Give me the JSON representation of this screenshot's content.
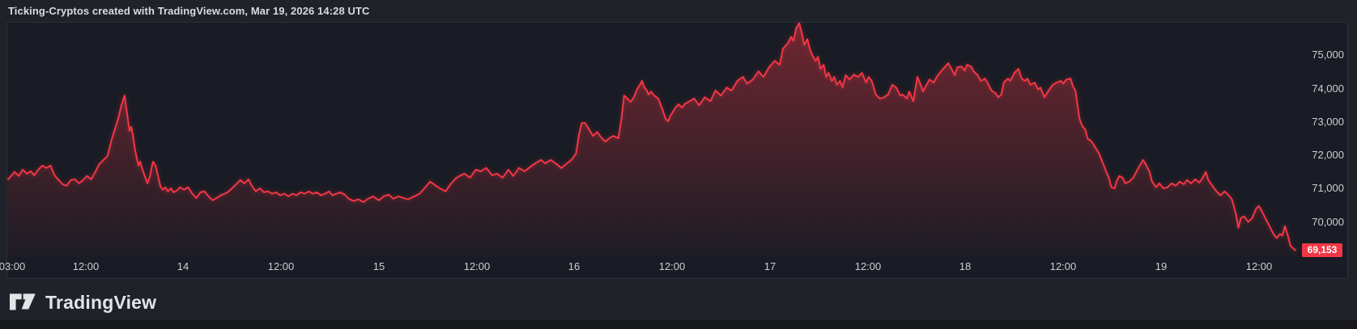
{
  "header": {
    "title": "Ticking-Cryptos created with TradingView.com, Mar 19, 2026 14:28 UTC"
  },
  "footer": {
    "brand": "TradingView",
    "logo_icon": "tradingview-logo"
  },
  "colors": {
    "line": "#f23645",
    "fill_top": "rgba(242,54,69,0.40)",
    "fill_bottom": "rgba(242,54,69,0.02)",
    "badge_bg": "#f23645",
    "badge_text": "#ffffff",
    "outer_bg": "#20222a",
    "plot_bg": "#191c24",
    "frame_border": "#2e3138",
    "axis_text": "#cdced3",
    "title_text": "#d9dadd"
  },
  "chart_data": {
    "type": "line",
    "title": "Ticking-Cryptos created with TradingView.com, Mar 19, 2026 14:28 UTC",
    "series_name": "Ticking-Cryptos",
    "time_unit": "hours since Mar 13 2026 00:00 UTC",
    "x_range": [
      2.3,
      160.8
    ],
    "y_range": [
      68950,
      76000
    ],
    "grid": false,
    "legend": "none",
    "last_price": 69153,
    "last_price_label": "69,153",
    "x_ticks": [
      {
        "t": 3,
        "label": "03:00"
      },
      {
        "t": 12,
        "label": "12:00"
      },
      {
        "t": 24,
        "label": "14"
      },
      {
        "t": 36,
        "label": "12:00"
      },
      {
        "t": 48,
        "label": "15"
      },
      {
        "t": 60,
        "label": "12:00"
      },
      {
        "t": 72,
        "label": "16"
      },
      {
        "t": 84,
        "label": "12:00"
      },
      {
        "t": 96,
        "label": "17"
      },
      {
        "t": 108,
        "label": "12:00"
      },
      {
        "t": 120,
        "label": "18"
      },
      {
        "t": 132,
        "label": "12:00"
      },
      {
        "t": 144,
        "label": "19"
      },
      {
        "t": 156,
        "label": "12:00"
      }
    ],
    "y_ticks": [
      {
        "price": 70000,
        "label": "70,000"
      },
      {
        "price": 71000,
        "label": "71,000"
      },
      {
        "price": 72000,
        "label": "72,000"
      },
      {
        "price": 73000,
        "label": "73,000"
      },
      {
        "price": 74000,
        "label": "74,000"
      },
      {
        "price": 75000,
        "label": "75,000"
      }
    ],
    "series": [
      [
        2.5,
        71280
      ],
      [
        3.3,
        71500
      ],
      [
        3.8,
        71380
      ],
      [
        4.3,
        71570
      ],
      [
        4.8,
        71450
      ],
      [
        5.3,
        71520
      ],
      [
        5.7,
        71400
      ],
      [
        6.2,
        71570
      ],
      [
        6.7,
        71690
      ],
      [
        7.2,
        71620
      ],
      [
        7.7,
        71690
      ],
      [
        8.2,
        71400
      ],
      [
        8.7,
        71260
      ],
      [
        9.2,
        71130
      ],
      [
        9.7,
        71090
      ],
      [
        10.2,
        71260
      ],
      [
        10.7,
        71280
      ],
      [
        11.2,
        71160
      ],
      [
        11.7,
        71260
      ],
      [
        12.2,
        71380
      ],
      [
        12.7,
        71280
      ],
      [
        13.2,
        71500
      ],
      [
        13.7,
        71740
      ],
      [
        14.2,
        71860
      ],
      [
        14.7,
        71980
      ],
      [
        15.2,
        72460
      ],
      [
        15.6,
        72780
      ],
      [
        16.0,
        73090
      ],
      [
        16.4,
        73500
      ],
      [
        16.8,
        73790
      ],
      [
        17.1,
        73260
      ],
      [
        17.4,
        72730
      ],
      [
        17.6,
        72850
      ],
      [
        17.8,
        72630
      ],
      [
        18.1,
        72130
      ],
      [
        18.5,
        71690
      ],
      [
        18.7,
        71810
      ],
      [
        19.0,
        71570
      ],
      [
        19.6,
        71160
      ],
      [
        19.9,
        71350
      ],
      [
        20.1,
        71620
      ],
      [
        20.3,
        71810
      ],
      [
        20.6,
        71690
      ],
      [
        20.9,
        71380
      ],
      [
        21.2,
        71060
      ],
      [
        21.5,
        70970
      ],
      [
        21.8,
        71040
      ],
      [
        22.1,
        70920
      ],
      [
        22.5,
        71010
      ],
      [
        22.8,
        70890
      ],
      [
        23.2,
        70940
      ],
      [
        23.6,
        71040
      ],
      [
        24.1,
        70970
      ],
      [
        24.6,
        71040
      ],
      [
        25.1,
        70850
      ],
      [
        25.6,
        70720
      ],
      [
        26.1,
        70890
      ],
      [
        26.6,
        70920
      ],
      [
        27.1,
        70770
      ],
      [
        27.6,
        70650
      ],
      [
        28.1,
        70720
      ],
      [
        28.6,
        70800
      ],
      [
        29.1,
        70850
      ],
      [
        29.6,
        70920
      ],
      [
        30.1,
        71040
      ],
      [
        30.6,
        71160
      ],
      [
        31.0,
        71260
      ],
      [
        31.5,
        71160
      ],
      [
        32.0,
        71280
      ],
      [
        32.4,
        71090
      ],
      [
        32.9,
        70920
      ],
      [
        33.4,
        71010
      ],
      [
        33.9,
        70890
      ],
      [
        34.4,
        70920
      ],
      [
        34.9,
        70850
      ],
      [
        35.4,
        70890
      ],
      [
        35.9,
        70800
      ],
      [
        36.4,
        70850
      ],
      [
        36.9,
        70770
      ],
      [
        37.4,
        70850
      ],
      [
        37.9,
        70800
      ],
      [
        38.4,
        70890
      ],
      [
        38.9,
        70850
      ],
      [
        39.4,
        70920
      ],
      [
        39.9,
        70850
      ],
      [
        40.4,
        70890
      ],
      [
        40.9,
        70800
      ],
      [
        41.4,
        70850
      ],
      [
        41.9,
        70920
      ],
      [
        42.3,
        70800
      ],
      [
        42.8,
        70850
      ],
      [
        43.3,
        70890
      ],
      [
        43.8,
        70820
      ],
      [
        44.3,
        70700
      ],
      [
        44.9,
        70630
      ],
      [
        45.5,
        70680
      ],
      [
        46.1,
        70600
      ],
      [
        46.7,
        70700
      ],
      [
        47.3,
        70770
      ],
      [
        48.0,
        70650
      ],
      [
        48.6,
        70770
      ],
      [
        49.2,
        70820
      ],
      [
        49.8,
        70700
      ],
      [
        50.4,
        70770
      ],
      [
        51.0,
        70720
      ],
      [
        51.6,
        70680
      ],
      [
        52.2,
        70750
      ],
      [
        53.0,
        70850
      ],
      [
        53.6,
        71010
      ],
      [
        54.3,
        71210
      ],
      [
        55.0,
        71090
      ],
      [
        55.5,
        71010
      ],
      [
        56.2,
        70920
      ],
      [
        56.8,
        71130
      ],
      [
        57.4,
        71300
      ],
      [
        57.9,
        71380
      ],
      [
        58.5,
        71450
      ],
      [
        59.2,
        71330
      ],
      [
        59.9,
        71570
      ],
      [
        60.5,
        71520
      ],
      [
        61.2,
        71620
      ],
      [
        61.9,
        71400
      ],
      [
        62.5,
        71450
      ],
      [
        63.2,
        71330
      ],
      [
        63.9,
        71570
      ],
      [
        64.5,
        71380
      ],
      [
        65.2,
        71620
      ],
      [
        65.9,
        71520
      ],
      [
        66.5,
        71640
      ],
      [
        67.2,
        71760
      ],
      [
        67.9,
        71860
      ],
      [
        68.4,
        71760
      ],
      [
        69.1,
        71860
      ],
      [
        69.8,
        71740
      ],
      [
        70.4,
        71620
      ],
      [
        71.1,
        71760
      ],
      [
        71.7,
        71880
      ],
      [
        72.2,
        72050
      ],
      [
        72.6,
        72660
      ],
      [
        72.9,
        72970
      ],
      [
        73.3,
        72970
      ],
      [
        73.8,
        72780
      ],
      [
        74.3,
        72580
      ],
      [
        74.8,
        72700
      ],
      [
        75.3,
        72530
      ],
      [
        75.8,
        72410
      ],
      [
        76.4,
        72530
      ],
      [
        76.8,
        72580
      ],
      [
        77.4,
        72510
      ],
      [
        77.8,
        73140
      ],
      [
        78.1,
        73790
      ],
      [
        78.5,
        73700
      ],
      [
        78.9,
        73600
      ],
      [
        79.3,
        73740
      ],
      [
        79.7,
        73980
      ],
      [
        80.1,
        74130
      ],
      [
        80.3,
        74230
      ],
      [
        80.6,
        74030
      ],
      [
        80.9,
        73940
      ],
      [
        81.1,
        73820
      ],
      [
        81.4,
        73910
      ],
      [
        81.8,
        73790
      ],
      [
        82.3,
        73700
      ],
      [
        82.8,
        73380
      ],
      [
        83.2,
        73090
      ],
      [
        83.5,
        73020
      ],
      [
        83.8,
        73190
      ],
      [
        84.1,
        73310
      ],
      [
        84.4,
        73430
      ],
      [
        84.8,
        73530
      ],
      [
        85.2,
        73430
      ],
      [
        85.6,
        73550
      ],
      [
        86.0,
        73600
      ],
      [
        86.7,
        73700
      ],
      [
        87.3,
        73500
      ],
      [
        88.0,
        73740
      ],
      [
        88.7,
        73620
      ],
      [
        89.3,
        73940
      ],
      [
        90.0,
        73790
      ],
      [
        90.7,
        74030
      ],
      [
        91.3,
        73940
      ],
      [
        92.0,
        74230
      ],
      [
        92.7,
        74350
      ],
      [
        93.2,
        74150
      ],
      [
        93.9,
        74270
      ],
      [
        94.6,
        74520
      ],
      [
        95.2,
        74350
      ],
      [
        95.9,
        74640
      ],
      [
        96.6,
        74830
      ],
      [
        97.2,
        74710
      ],
      [
        97.6,
        75190
      ],
      [
        98.2,
        75360
      ],
      [
        98.6,
        75550
      ],
      [
        98.9,
        75430
      ],
      [
        99.2,
        75800
      ],
      [
        99.6,
        75960
      ],
      [
        99.9,
        75680
      ],
      [
        100.2,
        75310
      ],
      [
        100.6,
        75480
      ],
      [
        100.9,
        75190
      ],
      [
        101.2,
        75000
      ],
      [
        101.6,
        74830
      ],
      [
        101.9,
        74950
      ],
      [
        102.2,
        74590
      ],
      [
        102.6,
        74710
      ],
      [
        102.9,
        74350
      ],
      [
        103.2,
        74470
      ],
      [
        103.6,
        74230
      ],
      [
        103.9,
        74350
      ],
      [
        104.2,
        74110
      ],
      [
        104.6,
        74230
      ],
      [
        104.9,
        74030
      ],
      [
        105.3,
        74400
      ],
      [
        105.8,
        74270
      ],
      [
        106.3,
        74420
      ],
      [
        106.8,
        74350
      ],
      [
        107.3,
        74470
      ],
      [
        107.8,
        74180
      ],
      [
        108.1,
        74350
      ],
      [
        108.5,
        74230
      ],
      [
        109.0,
        73820
      ],
      [
        109.5,
        73700
      ],
      [
        110.0,
        73740
      ],
      [
        110.5,
        73820
      ],
      [
        111.0,
        74110
      ],
      [
        111.5,
        74030
      ],
      [
        112.0,
        73790
      ],
      [
        112.3,
        73820
      ],
      [
        112.8,
        73700
      ],
      [
        113.1,
        73910
      ],
      [
        113.6,
        73620
      ],
      [
        114.1,
        74350
      ],
      [
        114.5,
        74110
      ],
      [
        114.8,
        73910
      ],
      [
        115.1,
        74060
      ],
      [
        115.6,
        74270
      ],
      [
        116.1,
        74180
      ],
      [
        116.6,
        74400
      ],
      [
        117.1,
        74540
      ],
      [
        117.5,
        74660
      ],
      [
        117.9,
        74760
      ],
      [
        118.4,
        74540
      ],
      [
        118.7,
        74400
      ],
      [
        119.0,
        74640
      ],
      [
        119.5,
        74660
      ],
      [
        119.9,
        74540
      ],
      [
        120.2,
        74710
      ],
      [
        120.7,
        74660
      ],
      [
        121.0,
        74520
      ],
      [
        121.5,
        74400
      ],
      [
        121.9,
        74230
      ],
      [
        122.4,
        74300
      ],
      [
        122.7,
        74180
      ],
      [
        123.2,
        73940
      ],
      [
        123.7,
        73860
      ],
      [
        124.0,
        73740
      ],
      [
        124.4,
        73820
      ],
      [
        124.7,
        74180
      ],
      [
        125.2,
        74300
      ],
      [
        125.5,
        74230
      ],
      [
        126.0,
        74470
      ],
      [
        126.5,
        74590
      ],
      [
        126.9,
        74300
      ],
      [
        127.3,
        74230
      ],
      [
        127.6,
        74300
      ],
      [
        128.0,
        74110
      ],
      [
        128.5,
        74180
      ],
      [
        128.9,
        73980
      ],
      [
        129.2,
        74030
      ],
      [
        129.7,
        73740
      ],
      [
        130.2,
        73940
      ],
      [
        130.7,
        74110
      ],
      [
        131.2,
        74180
      ],
      [
        131.7,
        74230
      ],
      [
        132.0,
        74150
      ],
      [
        132.4,
        74270
      ],
      [
        132.9,
        74300
      ],
      [
        133.2,
        74060
      ],
      [
        133.5,
        73940
      ],
      [
        134.0,
        73090
      ],
      [
        134.4,
        72850
      ],
      [
        134.7,
        72780
      ],
      [
        135.0,
        72490
      ],
      [
        135.3,
        72460
      ],
      [
        135.6,
        72370
      ],
      [
        135.9,
        72250
      ],
      [
        136.4,
        72050
      ],
      [
        136.9,
        71740
      ],
      [
        137.3,
        71500
      ],
      [
        137.6,
        71330
      ],
      [
        137.9,
        71040
      ],
      [
        138.3,
        71010
      ],
      [
        138.6,
        71260
      ],
      [
        138.9,
        71380
      ],
      [
        139.3,
        71330
      ],
      [
        139.6,
        71160
      ],
      [
        140.1,
        71210
      ],
      [
        140.6,
        71330
      ],
      [
        141.1,
        71570
      ],
      [
        141.4,
        71690
      ],
      [
        141.8,
        71860
      ],
      [
        142.1,
        71740
      ],
      [
        142.6,
        71500
      ],
      [
        142.9,
        71210
      ],
      [
        143.4,
        71040
      ],
      [
        143.8,
        71160
      ],
      [
        144.3,
        71010
      ],
      [
        144.8,
        71040
      ],
      [
        145.3,
        71160
      ],
      [
        145.8,
        71090
      ],
      [
        146.3,
        71210
      ],
      [
        146.8,
        71130
      ],
      [
        147.2,
        71260
      ],
      [
        147.7,
        71160
      ],
      [
        148.2,
        71280
      ],
      [
        148.7,
        71180
      ],
      [
        149.0,
        71280
      ],
      [
        149.5,
        71500
      ],
      [
        149.8,
        71260
      ],
      [
        150.3,
        71090
      ],
      [
        150.8,
        70920
      ],
      [
        151.3,
        70800
      ],
      [
        151.8,
        70920
      ],
      [
        152.3,
        70800
      ],
      [
        152.7,
        70680
      ],
      [
        153.2,
        70240
      ],
      [
        153.5,
        69830
      ],
      [
        153.8,
        70120
      ],
      [
        154.2,
        70170
      ],
      [
        154.7,
        70000
      ],
      [
        155.2,
        70120
      ],
      [
        155.7,
        70410
      ],
      [
        156.0,
        70480
      ],
      [
        156.3,
        70360
      ],
      [
        156.8,
        70120
      ],
      [
        157.3,
        69880
      ],
      [
        157.8,
        69640
      ],
      [
        158.2,
        69520
      ],
      [
        158.6,
        69640
      ],
      [
        158.9,
        69590
      ],
      [
        159.2,
        69880
      ],
      [
        159.6,
        69570
      ],
      [
        159.9,
        69280
      ],
      [
        160.5,
        69153
      ]
    ]
  }
}
